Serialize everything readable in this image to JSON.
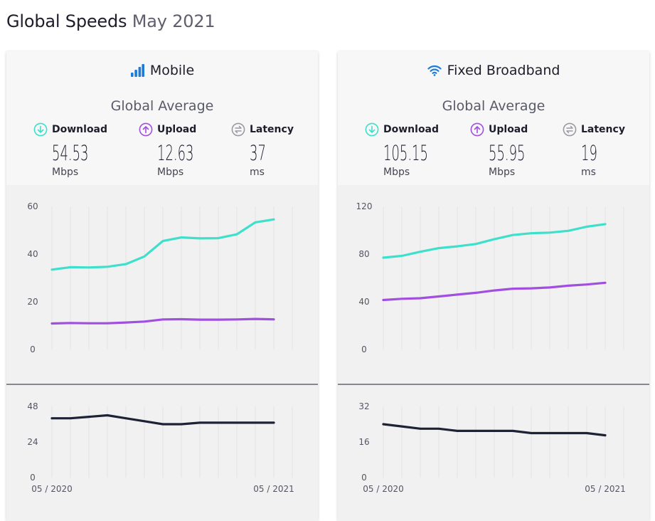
{
  "header": {
    "title": "Global Speeds",
    "subtitle": "May 2021"
  },
  "colors": {
    "download": "#3ee0cc",
    "upload": "#a14fe0",
    "latency": "#1e2235",
    "mobile_icon": "#1f7bd6",
    "wifi_icon": "#1f7bd6",
    "latency_icon": "#9a9aa3"
  },
  "labels": {
    "download": "Download",
    "upload": "Upload",
    "latency": "Latency",
    "global_average": "Global Average"
  },
  "mobile": {
    "title": "Mobile",
    "icon": "signal-bars-icon",
    "download": {
      "value": "54.53",
      "unit": "Mbps"
    },
    "upload": {
      "value": "12.63",
      "unit": "Mbps"
    },
    "latency": {
      "value": "37",
      "unit": "ms"
    }
  },
  "fixed": {
    "title": "Fixed Broadband",
    "icon": "wifi-icon",
    "download": {
      "value": "105.15",
      "unit": "Mbps"
    },
    "upload": {
      "value": "55.95",
      "unit": "Mbps"
    },
    "latency": {
      "value": "19",
      "unit": "ms"
    }
  },
  "chart_data": [
    {
      "type": "line",
      "panel": "mobile-speed",
      "x": [
        "05 / 2020",
        "06 / 2020",
        "07 / 2020",
        "08 / 2020",
        "09 / 2020",
        "10 / 2020",
        "11 / 2020",
        "12 / 2020",
        "01 / 2021",
        "02 / 2021",
        "03 / 2021",
        "04 / 2021",
        "05 / 2021"
      ],
      "x_tick_labels": [
        "05 / 2020",
        "05 / 2021"
      ],
      "y_ticks": [
        0,
        20,
        40,
        60
      ],
      "ylim": [
        0,
        60
      ],
      "grid": "vertical",
      "series": [
        {
          "color_key": "download",
          "values": [
            33.5,
            34.5,
            34.4,
            34.7,
            35.8,
            39.0,
            45.5,
            47.0,
            46.6,
            46.7,
            48.3,
            53.3,
            54.53
          ]
        },
        {
          "color_key": "upload",
          "values": [
            10.9,
            11.1,
            11.0,
            11.0,
            11.3,
            11.7,
            12.6,
            12.7,
            12.5,
            12.5,
            12.6,
            12.8,
            12.63
          ]
        }
      ]
    },
    {
      "type": "line",
      "panel": "mobile-latency",
      "x": [
        "05 / 2020",
        "06 / 2020",
        "07 / 2020",
        "08 / 2020",
        "09 / 2020",
        "10 / 2020",
        "11 / 2020",
        "12 / 2020",
        "01 / 2021",
        "02 / 2021",
        "03 / 2021",
        "04 / 2021",
        "05 / 2021"
      ],
      "y_ticks": [
        0,
        24,
        48
      ],
      "ylim": [
        0,
        48
      ],
      "grid": "vertical",
      "series": [
        {
          "color_key": "latency",
          "values": [
            40,
            40,
            41,
            42,
            40,
            38,
            36,
            36,
            37,
            37,
            37,
            37,
            37
          ]
        }
      ]
    },
    {
      "type": "line",
      "panel": "fixed-speed",
      "x": [
        "05 / 2020",
        "06 / 2020",
        "07 / 2020",
        "08 / 2020",
        "09 / 2020",
        "10 / 2020",
        "11 / 2020",
        "12 / 2020",
        "01 / 2021",
        "02 / 2021",
        "03 / 2021",
        "04 / 2021",
        "05 / 2021"
      ],
      "x_tick_labels": [
        "05 / 2020",
        "05 / 2021"
      ],
      "y_ticks": [
        0,
        40,
        80,
        120
      ],
      "ylim": [
        0,
        120
      ],
      "grid": "vertical",
      "series": [
        {
          "color_key": "download",
          "values": [
            77,
            78.5,
            82,
            85,
            86.5,
            88.5,
            92.5,
            96,
            97.5,
            98,
            99.5,
            103,
            105.15
          ]
        },
        {
          "color_key": "upload",
          "values": [
            41.5,
            42.5,
            43,
            44.5,
            46,
            47.5,
            49.5,
            51,
            51.3,
            52,
            53.5,
            54.5,
            55.95
          ]
        }
      ]
    },
    {
      "type": "line",
      "panel": "fixed-latency",
      "x": [
        "05 / 2020",
        "06 / 2020",
        "07 / 2020",
        "08 / 2020",
        "09 / 2020",
        "10 / 2020",
        "11 / 2020",
        "12 / 2020",
        "01 / 2021",
        "02 / 2021",
        "03 / 2021",
        "04 / 2021",
        "05 / 2021"
      ],
      "y_ticks": [
        0,
        16,
        32
      ],
      "ylim": [
        0,
        32
      ],
      "grid": "vertical",
      "series": [
        {
          "color_key": "latency",
          "values": [
            24,
            23,
            22,
            22,
            21,
            21,
            21,
            21,
            20,
            20,
            20,
            20,
            19
          ]
        }
      ]
    }
  ]
}
